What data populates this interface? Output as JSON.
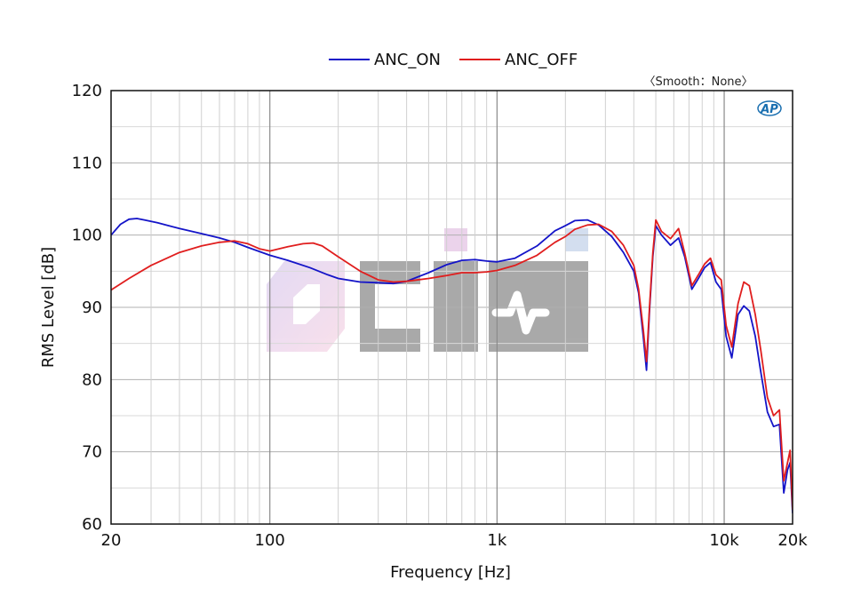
{
  "chart_data": {
    "type": "line",
    "x_scale": "log",
    "xlabel": "Frequency [Hz]",
    "ylabel": "RMS Level [dB]",
    "xlim": [
      20,
      20000
    ],
    "ylim": [
      60,
      120
    ],
    "x_ticks": [
      {
        "value": 20,
        "label": "20"
      },
      {
        "value": 100,
        "label": "100"
      },
      {
        "value": 1000,
        "label": "1k"
      },
      {
        "value": 10000,
        "label": "10k"
      },
      {
        "value": 20000,
        "label": "20k"
      }
    ],
    "y_ticks": [
      60,
      70,
      80,
      90,
      100,
      110,
      120
    ],
    "grid": true,
    "legend_position": "top-center",
    "annotation": "〈Smooth：None〉",
    "series": [
      {
        "name": "ANC_ON",
        "color": "#1414c8",
        "points": [
          [
            20,
            100
          ],
          [
            22,
            101.5
          ],
          [
            24,
            102.2
          ],
          [
            26,
            102.3
          ],
          [
            28,
            102.1
          ],
          [
            32,
            101.7
          ],
          [
            40,
            100.9
          ],
          [
            50,
            100.2
          ],
          [
            60,
            99.6
          ],
          [
            70,
            99.0
          ],
          [
            80,
            98.3
          ],
          [
            100,
            97.2
          ],
          [
            120,
            96.5
          ],
          [
            150,
            95.5
          ],
          [
            180,
            94.5
          ],
          [
            200,
            94.0
          ],
          [
            250,
            93.5
          ],
          [
            300,
            93.4
          ],
          [
            350,
            93.3
          ],
          [
            400,
            93.6
          ],
          [
            500,
            94.8
          ],
          [
            600,
            95.9
          ],
          [
            700,
            96.5
          ],
          [
            800,
            96.6
          ],
          [
            900,
            96.4
          ],
          [
            1000,
            96.3
          ],
          [
            1200,
            96.8
          ],
          [
            1500,
            98.5
          ],
          [
            1800,
            100.6
          ],
          [
            2000,
            101.3
          ],
          [
            2200,
            102.0
          ],
          [
            2500,
            102.1
          ],
          [
            2800,
            101.4
          ],
          [
            3200,
            99.8
          ],
          [
            3600,
            97.6
          ],
          [
            4000,
            95.0
          ],
          [
            4200,
            92.0
          ],
          [
            4400,
            86.0
          ],
          [
            4550,
            81.3
          ],
          [
            4700,
            90.0
          ],
          [
            4850,
            97.0
          ],
          [
            5000,
            101.3
          ],
          [
            5300,
            100.0
          ],
          [
            5800,
            98.6
          ],
          [
            6300,
            99.6
          ],
          [
            6700,
            97.0
          ],
          [
            7200,
            92.5
          ],
          [
            7700,
            94.0
          ],
          [
            8200,
            95.5
          ],
          [
            8700,
            96.2
          ],
          [
            9200,
            93.5
          ],
          [
            9700,
            92.5
          ],
          [
            10200,
            86.0
          ],
          [
            10800,
            83.0
          ],
          [
            11500,
            89.0
          ],
          [
            12200,
            90.2
          ],
          [
            12900,
            89.5
          ],
          [
            13700,
            86.0
          ],
          [
            14500,
            81.0
          ],
          [
            15500,
            75.5
          ],
          [
            16500,
            73.5
          ],
          [
            17500,
            73.8
          ],
          [
            18300,
            64.3
          ],
          [
            19000,
            67.5
          ],
          [
            19500,
            68.5
          ],
          [
            20000,
            61.5
          ]
        ]
      },
      {
        "name": "ANC_OFF",
        "color": "#e01e1e",
        "points": [
          [
            20,
            92.4
          ],
          [
            24,
            94.0
          ],
          [
            30,
            95.8
          ],
          [
            40,
            97.6
          ],
          [
            50,
            98.5
          ],
          [
            60,
            99.0
          ],
          [
            70,
            99.2
          ],
          [
            80,
            98.8
          ],
          [
            90,
            98.1
          ],
          [
            100,
            97.8
          ],
          [
            120,
            98.4
          ],
          [
            140,
            98.8
          ],
          [
            155,
            98.9
          ],
          [
            170,
            98.5
          ],
          [
            200,
            97.0
          ],
          [
            250,
            95.0
          ],
          [
            300,
            93.8
          ],
          [
            350,
            93.5
          ],
          [
            400,
            93.6
          ],
          [
            500,
            94.0
          ],
          [
            600,
            94.4
          ],
          [
            700,
            94.8
          ],
          [
            800,
            94.8
          ],
          [
            900,
            94.9
          ],
          [
            1000,
            95.1
          ],
          [
            1200,
            95.8
          ],
          [
            1500,
            97.2
          ],
          [
            1800,
            99.0
          ],
          [
            2000,
            99.8
          ],
          [
            2200,
            100.8
          ],
          [
            2500,
            101.4
          ],
          [
            2800,
            101.5
          ],
          [
            3200,
            100.5
          ],
          [
            3600,
            98.6
          ],
          [
            4000,
            95.8
          ],
          [
            4200,
            92.5
          ],
          [
            4400,
            87.0
          ],
          [
            4550,
            82.5
          ],
          [
            4700,
            90.5
          ],
          [
            4850,
            97.5
          ],
          [
            5000,
            102.1
          ],
          [
            5300,
            100.5
          ],
          [
            5800,
            99.5
          ],
          [
            6300,
            100.9
          ],
          [
            6700,
            97.5
          ],
          [
            7200,
            93.0
          ],
          [
            7700,
            94.5
          ],
          [
            8200,
            96.0
          ],
          [
            8700,
            96.8
          ],
          [
            9200,
            94.5
          ],
          [
            9700,
            93.8
          ],
          [
            10200,
            87.5
          ],
          [
            10800,
            84.5
          ],
          [
            11500,
            90.5
          ],
          [
            12200,
            93.5
          ],
          [
            12900,
            93.0
          ],
          [
            13700,
            89.0
          ],
          [
            14500,
            84.0
          ],
          [
            15500,
            77.5
          ],
          [
            16500,
            75.0
          ],
          [
            17500,
            75.8
          ],
          [
            18300,
            66.0
          ],
          [
            19000,
            68.5
          ],
          [
            19500,
            70.2
          ],
          [
            20000,
            62.0
          ]
        ]
      }
    ]
  }
}
